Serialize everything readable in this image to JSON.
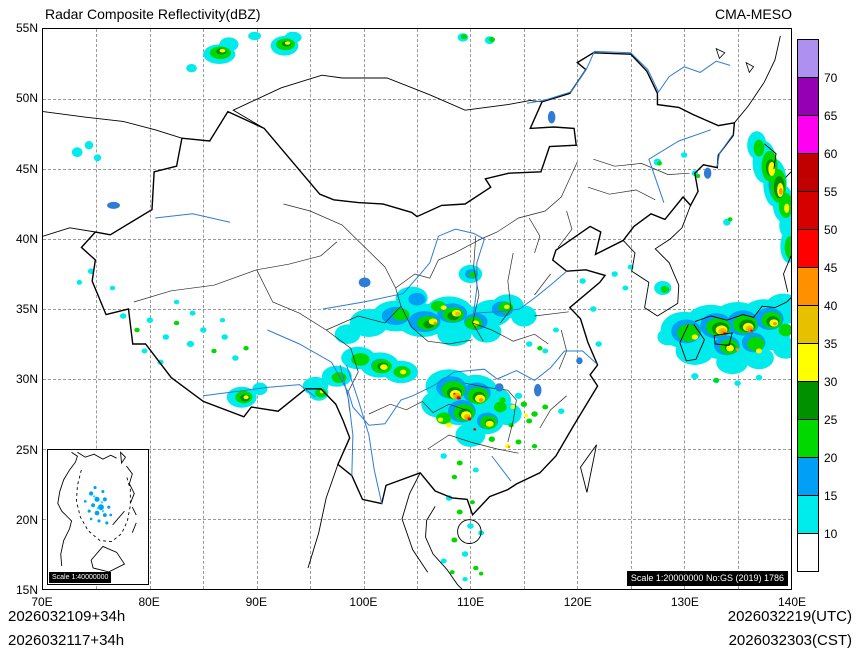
{
  "header": {
    "title": "Radar Composite Reflectivity(dBZ)",
    "model": "CMA-MESO"
  },
  "axes": {
    "lat_labels": [
      "55N",
      "50N",
      "45N",
      "40N",
      "35N",
      "30N",
      "25N",
      "20N",
      "15N"
    ],
    "lon_labels": [
      "70E",
      "80E",
      "90E",
      "100E",
      "110E",
      "120E",
      "130E",
      "140E"
    ]
  },
  "colorbar": {
    "unit": "dBZ",
    "tick_labels_top_to_bottom": [
      "70",
      "65",
      "60",
      "55",
      "50",
      "45",
      "40",
      "35",
      "30",
      "25",
      "20",
      "15",
      "10"
    ],
    "segment_colors_top_to_bottom": [
      "#AD90F0",
      "#9600B4",
      "#FF00F0",
      "#C00000",
      "#D60000",
      "#FF0000",
      "#FF9000",
      "#E7C000",
      "#FFFF00",
      "#019000",
      "#00D800",
      "#01A0F6",
      "#00ECEC",
      "#FFFFFF"
    ]
  },
  "map": {
    "scale_note": "Scale 1:20000000 No:GS (2019) 1786",
    "inset_scale_note": "Scale 1:40000000"
  },
  "footer": {
    "init_utc": "2026032109+34h",
    "init_cst": "2026032117+34h",
    "valid_utc": "2026032219(UTC)",
    "valid_cst": "2026032303(CST)"
  }
}
